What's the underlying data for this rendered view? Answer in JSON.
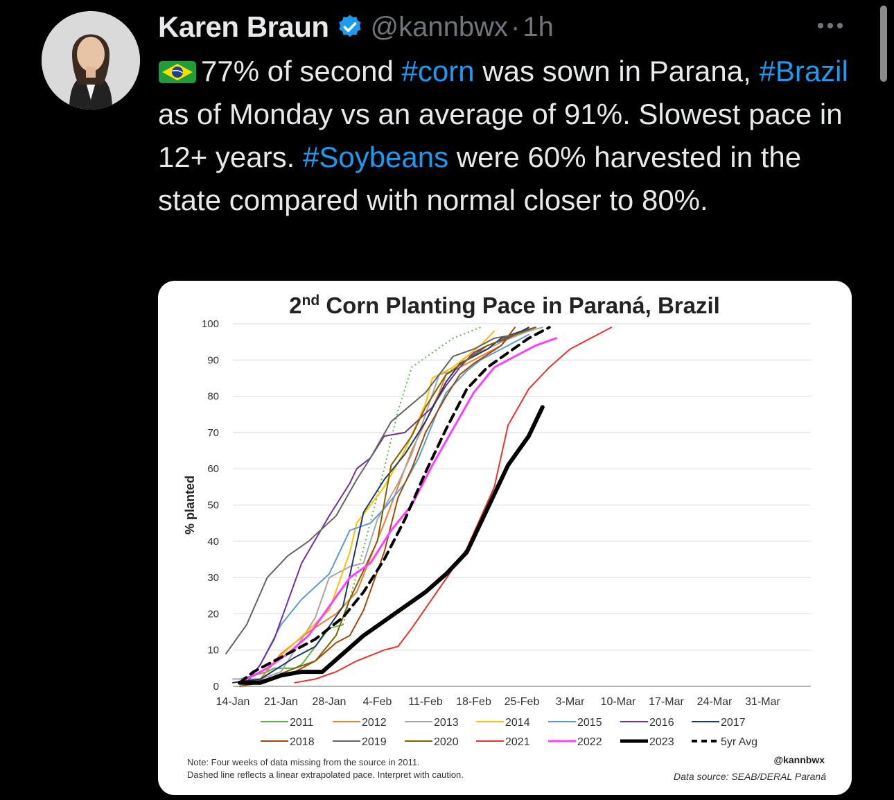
{
  "tweet": {
    "author_name": "Karen Braun",
    "handle": "@kannbwx",
    "separator": "·",
    "time": "1h",
    "text_parts": [
      {
        "t": "77% of second ",
        "tag": false
      },
      {
        "t": "#corn",
        "tag": true
      },
      {
        "t": " was sown in Parana, ",
        "tag": false
      },
      {
        "t": "#Brazil",
        "tag": true
      },
      {
        "t": " as of Monday vs an average of 91%. Slowest pace in 12+ years. ",
        "tag": false
      },
      {
        "t": "#Soybeans",
        "tag": true
      },
      {
        "t": " were 60% harvested in the state compared with normal closer to 80%.",
        "tag": false
      }
    ],
    "colors": {
      "link": "#1d9bf0",
      "text": "#e7e9ea",
      "muted": "#71767b"
    },
    "icons": [
      "brazil-flag-icon",
      "verified-badge-icon",
      "more-options-icon"
    ]
  },
  "chart_data": {
    "type": "line",
    "title_main": "2",
    "title_sup": "nd",
    "title_rest": " Corn Planting Pace in Paraná, Brazil",
    "ylabel": "% planted",
    "ylim": [
      0,
      100
    ],
    "yticks": [
      "0",
      "10",
      "20",
      "30",
      "40",
      "50",
      "60",
      "70",
      "80",
      "90",
      "100"
    ],
    "xticks": [
      "14-Jan",
      "21-Jan",
      "28-Jan",
      "4-Feb",
      "11-Feb",
      "18-Feb",
      "25-Feb",
      "3-Mar",
      "10-Mar",
      "17-Mar",
      "24-Mar",
      "31-Mar"
    ],
    "x_start": "14-Jan",
    "x_end": "7-Apr",
    "note": "Note: Four weeks of data missing from the source in 2011. Dashed line reflects a linear extrapolated pace. Interpret with caution.",
    "credit": "@kannbwx",
    "source": "Data source: SEAB/DERAL Paraná",
    "grid": true,
    "series": [
      {
        "name": "2011",
        "color": "#5cb544",
        "width": 2,
        "values": [
          [
            1,
            2
          ],
          [
            3,
            3
          ],
          [
            5,
            4
          ],
          [
            6,
            5
          ],
          [
            9,
            5
          ],
          [
            10,
            6
          ],
          [
            10,
            6
          ],
          [
            14,
            16
          ],
          [
            16,
            17
          ]
        ],
        "extrap": [
          [
            16,
            17
          ],
          [
            19,
            38
          ],
          [
            22,
            60
          ],
          [
            24,
            76
          ],
          [
            26,
            88
          ],
          [
            32,
            96
          ],
          [
            36,
            99
          ]
        ]
      },
      {
        "name": "2012",
        "color": "#ed7d31",
        "width": 2,
        "values": [
          [
            1,
            1
          ],
          [
            4,
            2
          ],
          [
            7,
            9
          ],
          [
            9,
            12
          ],
          [
            11,
            15
          ],
          [
            15,
            20
          ],
          [
            18,
            26
          ],
          [
            22,
            45
          ],
          [
            26,
            65
          ],
          [
            28,
            73
          ],
          [
            30,
            81
          ],
          [
            31,
            86
          ],
          [
            33,
            88
          ],
          [
            35,
            90
          ],
          [
            39,
            94
          ],
          [
            40,
            96
          ],
          [
            43,
            98
          ]
        ]
      },
      {
        "name": "2013",
        "color": "#a5a5a5",
        "width": 2,
        "values": [
          [
            0,
            2
          ],
          [
            4,
            2
          ],
          [
            7,
            4
          ],
          [
            9,
            10
          ],
          [
            12,
            19
          ],
          [
            14,
            30
          ],
          [
            17,
            33
          ],
          [
            19,
            34
          ],
          [
            21,
            46
          ],
          [
            24,
            56
          ],
          [
            26,
            64
          ],
          [
            28,
            75
          ],
          [
            30,
            86
          ],
          [
            32,
            87
          ],
          [
            34,
            91
          ],
          [
            37,
            93
          ],
          [
            39,
            95
          ],
          [
            43,
            98
          ],
          [
            45,
            99
          ]
        ]
      },
      {
        "name": "2014",
        "color": "#ffc000",
        "width": 2,
        "values": [
          [
            1,
            1
          ],
          [
            3,
            3
          ],
          [
            5,
            5
          ],
          [
            9,
            12
          ],
          [
            14,
            21
          ],
          [
            17,
            37
          ],
          [
            18,
            45
          ],
          [
            22,
            55
          ],
          [
            25,
            65
          ],
          [
            28,
            78
          ],
          [
            29,
            85
          ],
          [
            32,
            88
          ],
          [
            36,
            94
          ],
          [
            38,
            98
          ]
        ]
      },
      {
        "name": "2015",
        "color": "#5b9bd5",
        "width": 2,
        "values": [
          [
            2,
            1
          ],
          [
            4,
            6
          ],
          [
            7,
            17
          ],
          [
            10,
            24
          ],
          [
            14,
            31
          ],
          [
            17,
            43
          ],
          [
            20,
            45
          ],
          [
            22,
            49
          ],
          [
            25,
            56
          ],
          [
            27,
            63
          ],
          [
            30,
            77
          ],
          [
            31,
            81
          ],
          [
            34,
            87
          ],
          [
            36,
            90
          ],
          [
            40,
            94
          ],
          [
            42,
            96
          ],
          [
            43,
            97
          ]
        ]
      },
      {
        "name": "2016",
        "color": "#7030a0",
        "width": 2,
        "values": [
          [
            2,
            1
          ],
          [
            4,
            6
          ],
          [
            6,
            13
          ],
          [
            10,
            34
          ],
          [
            14,
            47
          ],
          [
            17,
            56
          ],
          [
            18,
            60
          ],
          [
            20,
            63
          ],
          [
            22,
            69
          ],
          [
            25,
            70
          ],
          [
            29,
            77
          ],
          [
            31,
            83
          ],
          [
            33,
            88
          ],
          [
            35,
            92
          ],
          [
            37,
            94
          ],
          [
            40,
            96
          ],
          [
            42,
            98
          ],
          [
            44,
            99
          ]
        ]
      },
      {
        "name": "2017",
        "color": "#1f3864",
        "width": 2,
        "values": [
          [
            0,
            1
          ],
          [
            4,
            2
          ],
          [
            9,
            8
          ],
          [
            12,
            11
          ],
          [
            16,
            22
          ],
          [
            19,
            48
          ],
          [
            22,
            57
          ],
          [
            25,
            64
          ],
          [
            28,
            73
          ],
          [
            31,
            84
          ],
          [
            33,
            89
          ],
          [
            35,
            91
          ],
          [
            37,
            93
          ],
          [
            39,
            96
          ],
          [
            42,
            98
          ],
          [
            43,
            99
          ]
        ]
      },
      {
        "name": "2018",
        "color": "#9e480e",
        "width": 2,
        "values": [
          [
            1,
            0
          ],
          [
            4,
            1
          ],
          [
            9,
            4
          ],
          [
            12,
            7
          ],
          [
            15,
            12
          ],
          [
            17,
            14
          ],
          [
            19,
            21
          ],
          [
            22,
            37
          ],
          [
            24,
            52
          ],
          [
            26,
            60
          ],
          [
            28,
            70
          ],
          [
            31,
            80
          ],
          [
            33,
            86
          ],
          [
            35,
            89
          ],
          [
            39,
            94
          ],
          [
            41,
            99
          ]
        ]
      },
      {
        "name": "2019",
        "color": "#636363",
        "width": 2,
        "values": [
          [
            -1,
            9
          ],
          [
            2,
            17
          ],
          [
            5,
            30
          ],
          [
            8,
            36
          ],
          [
            11,
            40
          ],
          [
            15,
            47
          ],
          [
            18,
            57
          ],
          [
            20,
            63
          ],
          [
            23,
            73
          ],
          [
            28,
            81
          ],
          [
            32,
            91
          ],
          [
            35,
            93
          ],
          [
            38,
            96
          ],
          [
            41,
            97
          ]
        ]
      },
      {
        "name": "2020",
        "color": "#806000",
        "width": 2,
        "values": [
          [
            2,
            1
          ],
          [
            5,
            2
          ],
          [
            9,
            5
          ],
          [
            12,
            7
          ],
          [
            15,
            14
          ],
          [
            17,
            24
          ],
          [
            21,
            40
          ],
          [
            23,
            61
          ],
          [
            26,
            69
          ],
          [
            28,
            77
          ],
          [
            31,
            86
          ],
          [
            34,
            90
          ],
          [
            37,
            94
          ],
          [
            41,
            97
          ],
          [
            44,
            99
          ]
        ]
      },
      {
        "name": "2021",
        "color": "#e8322c",
        "width": 2,
        "values": [
          [
            9,
            1
          ],
          [
            12,
            2
          ],
          [
            15,
            4
          ],
          [
            18,
            7
          ],
          [
            22,
            10
          ],
          [
            24,
            11
          ],
          [
            26,
            16
          ],
          [
            30,
            27
          ],
          [
            34,
            38
          ],
          [
            38,
            55
          ],
          [
            40,
            72
          ],
          [
            43,
            82
          ],
          [
            46,
            88
          ],
          [
            49,
            93
          ],
          [
            52,
            96
          ],
          [
            55,
            99
          ]
        ]
      },
      {
        "name": "2022",
        "color": "#ff40ff",
        "width": 3,
        "values": [
          [
            2,
            2
          ],
          [
            5,
            5
          ],
          [
            8,
            9
          ],
          [
            11,
            14
          ],
          [
            14,
            22
          ],
          [
            17,
            30
          ],
          [
            20,
            34
          ],
          [
            23,
            43
          ],
          [
            26,
            50
          ],
          [
            29,
            61
          ],
          [
            32,
            71
          ],
          [
            35,
            81
          ],
          [
            38,
            88
          ],
          [
            41,
            91
          ],
          [
            44,
            94
          ],
          [
            47,
            96
          ]
        ]
      },
      {
        "name": "2023",
        "color": "#000000",
        "width": 6,
        "values": [
          [
            1,
            1
          ],
          [
            4,
            1
          ],
          [
            7,
            3
          ],
          [
            10,
            4
          ],
          [
            13,
            4
          ],
          [
            16,
            9
          ],
          [
            19,
            14
          ],
          [
            22,
            18
          ],
          [
            25,
            22
          ],
          [
            28,
            26
          ],
          [
            31,
            31
          ],
          [
            34,
            37
          ],
          [
            37,
            49
          ],
          [
            40,
            61
          ],
          [
            43,
            69
          ],
          [
            45,
            77
          ]
        ]
      },
      {
        "name": "5yr Avg",
        "color": "#000000",
        "width": 4,
        "dash": "12 8",
        "values": [
          [
            1,
            1
          ],
          [
            3,
            4
          ],
          [
            6,
            7
          ],
          [
            9,
            10
          ],
          [
            12,
            13
          ],
          [
            16,
            19
          ],
          [
            19,
            26
          ],
          [
            22,
            35
          ],
          [
            25,
            46
          ],
          [
            28,
            59
          ],
          [
            31,
            71
          ],
          [
            34,
            82
          ],
          [
            37,
            88
          ],
          [
            40,
            92
          ],
          [
            43,
            96
          ],
          [
            46,
            99
          ]
        ]
      }
    ]
  }
}
